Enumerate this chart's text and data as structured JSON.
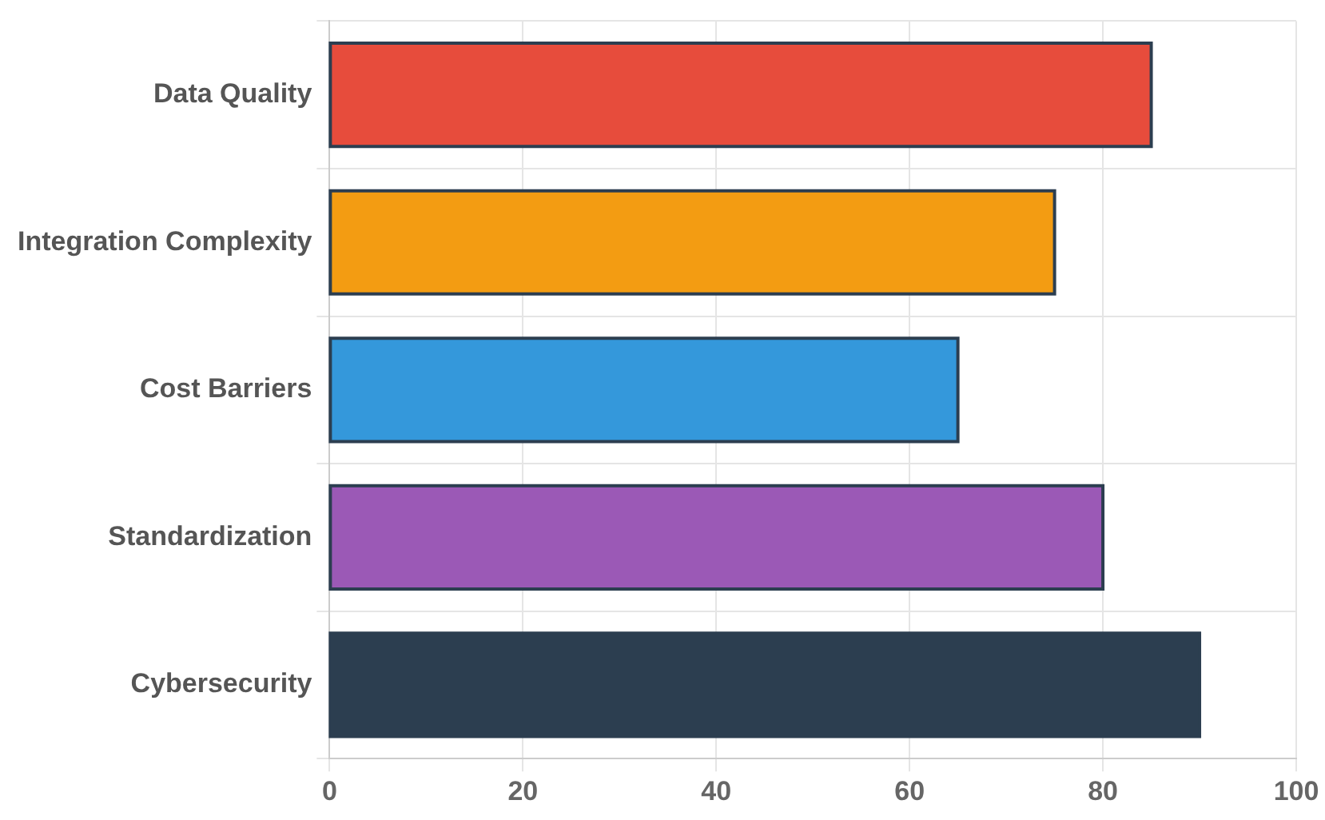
{
  "chart_data": {
    "type": "bar",
    "orientation": "horizontal",
    "categories": [
      "Data Quality",
      "Integration Complexity",
      "Cost Barriers",
      "Standardization",
      "Cybersecurity"
    ],
    "values": [
      85,
      75,
      65,
      80,
      90
    ],
    "colors": [
      "#e74c3c",
      "#f39c12",
      "#3498db",
      "#9b59b6",
      "#2c3e50"
    ],
    "xlim": [
      0,
      100
    ],
    "xticks": [
      0,
      20,
      40,
      60,
      80,
      100
    ],
    "grid": true,
    "legend": false
  }
}
